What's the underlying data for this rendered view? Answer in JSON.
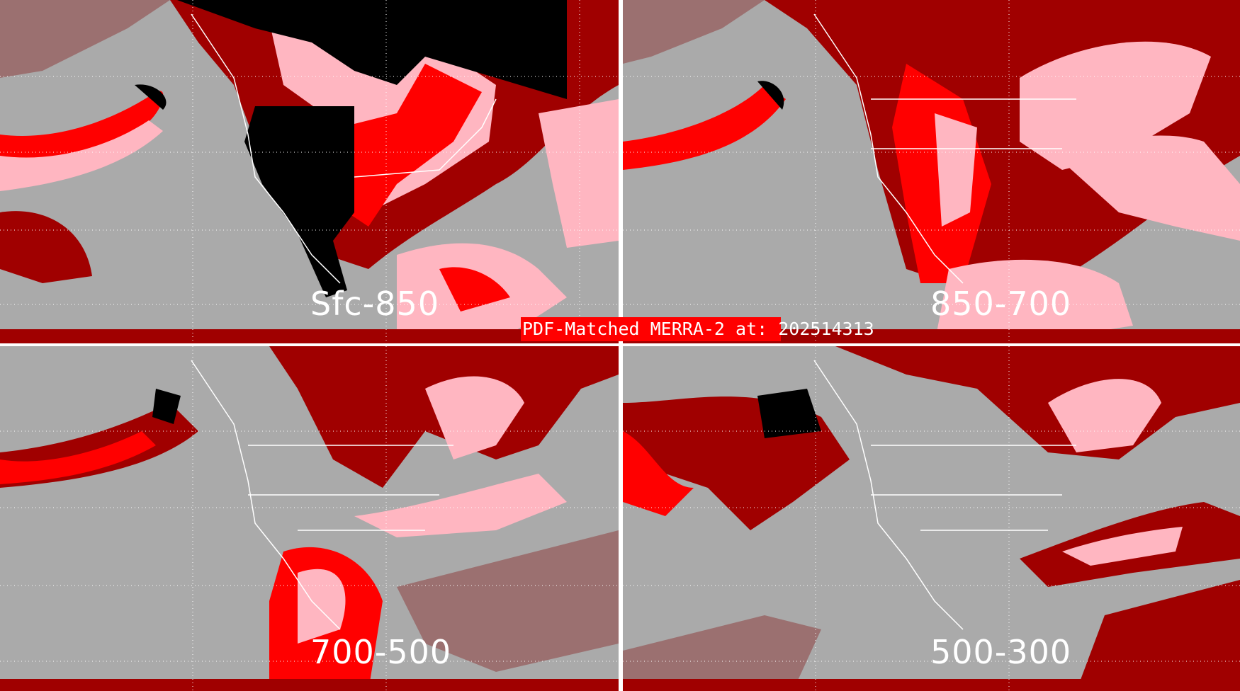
{
  "title": "PDF-Matched MERRA-2 at: 202514313",
  "colors": {
    "background": "#aaaaaa",
    "pink": "#ffb6c1",
    "red": "#ff0000",
    "dark_red": "#a00000",
    "gray_red": "#9b7070",
    "black": "#000000",
    "coastlines": "#ffffff",
    "title_box": "#ff0000"
  },
  "panels": [
    {
      "label": "Sfc-850"
    },
    {
      "label": "850-700"
    },
    {
      "label": "700-500"
    },
    {
      "label": "500-300"
    }
  ]
}
